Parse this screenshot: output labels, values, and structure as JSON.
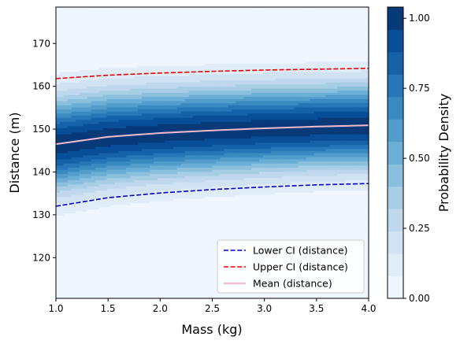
{
  "chart_data": {
    "type": "heatmap",
    "subtype": "filled-contour-with-lines",
    "xlabel": "Mass (kg)",
    "ylabel": "Distance (m)",
    "colorbar_label": "Probability Density",
    "xlim": [
      1.0,
      4.0
    ],
    "ylim": [
      110.5,
      178.5
    ],
    "x_ticks": [
      1.0,
      1.5,
      2.0,
      2.5,
      3.0,
      3.5,
      4.0
    ],
    "x_tick_labels": [
      "1.0",
      "1.5",
      "2.0",
      "2.5",
      "3.0",
      "3.5",
      "4.0"
    ],
    "y_ticks": [
      120,
      130,
      140,
      150,
      160,
      170
    ],
    "y_tick_labels": [
      "120",
      "130",
      "140",
      "150",
      "160",
      "170"
    ],
    "colorbar_ticks": [
      0.0,
      0.25,
      0.5,
      0.75,
      1.0
    ],
    "colorbar_tick_labels": [
      "0.00",
      "0.25",
      "0.50",
      "0.75",
      "1.00"
    ],
    "colorbar_range": [
      0.0,
      1.04
    ],
    "contour_levels": 13,
    "colormap": "Blues",
    "grid": false,
    "legend_position": "lower-right",
    "series": [
      {
        "name": "Lower CI (distance)",
        "style": "dashed",
        "color": "#0000cc",
        "x": [
          1.0,
          1.5,
          2.0,
          2.5,
          3.0,
          3.5,
          4.0
        ],
        "y": [
          132.0,
          134.0,
          135.1,
          135.9,
          136.5,
          137.0,
          137.3
        ]
      },
      {
        "name": "Upper CI (distance)",
        "style": "dashed",
        "color": "#ee0000",
        "x": [
          1.0,
          1.5,
          2.0,
          2.5,
          3.0,
          3.5,
          4.0
        ],
        "y": [
          161.8,
          162.6,
          163.1,
          163.5,
          163.8,
          164.0,
          164.2
        ]
      },
      {
        "name": "Mean (distance)",
        "style": "solid",
        "color": "#f5bcd0",
        "x": [
          1.0,
          1.5,
          2.0,
          2.5,
          3.0,
          3.5,
          4.0
        ],
        "y": [
          146.5,
          148.2,
          149.1,
          149.7,
          150.2,
          150.6,
          150.9
        ]
      }
    ],
    "density_sigma": [
      7.4,
      7.2,
      7.0,
      6.9,
      6.8,
      6.7,
      6.7
    ]
  }
}
